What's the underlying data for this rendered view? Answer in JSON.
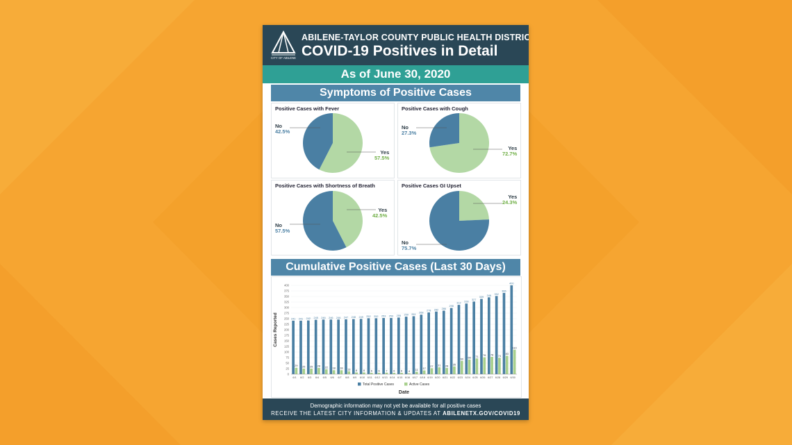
{
  "header": {
    "org": "ABILENE-TAYLOR COUNTY PUBLIC HEALTH DISTRICT",
    "title": "COVID-19 Positives in Detail",
    "logo_text": "CITY OF ABILENE"
  },
  "date_banner": "As of June 30, 2020",
  "symptoms": {
    "section_title": "Symptoms of Positive Cases",
    "panels": [
      {
        "title": "Positive Cases with Fever",
        "no_label": "No",
        "no_value": "42.5%",
        "yes_label": "Yes",
        "yes_value": "57.5%",
        "no": 42.5,
        "yes": 57.5
      },
      {
        "title": "Positive Cases with Cough",
        "no_label": "No",
        "no_value": "27.3%",
        "yes_label": "Yes",
        "yes_value": "72.7%",
        "no": 27.3,
        "yes": 72.7
      },
      {
        "title": "Positive Cases with Shortness of Breath",
        "no_label": "No",
        "no_value": "57.5%",
        "yes_label": "Yes",
        "yes_value": "42.5%",
        "no": 57.5,
        "yes": 42.5
      },
      {
        "title": "Positive Cases GI Upset",
        "no_label": "No",
        "no_value": "75.7%",
        "yes_label": "Yes",
        "yes_value": "24.3%",
        "no": 75.7,
        "yes": 24.3
      }
    ]
  },
  "cumulative": {
    "section_title": "Cumulative Positive Cases (Last 30 Days)"
  },
  "chart_data": {
    "type": "bar",
    "title": "Cumulative Positive Cases (Last 30 Days)",
    "xlabel": "Date",
    "ylabel": "Cases Reported",
    "ylim": [
      0,
      400
    ],
    "yticks": [
      0,
      25,
      50,
      75,
      100,
      125,
      150,
      175,
      200,
      225,
      250,
      275,
      300,
      325,
      350,
      375,
      400
    ],
    "categories": [
      "6/1",
      "6/2",
      "6/3",
      "6/4",
      "6/5",
      "6/6",
      "6/7",
      "6/8",
      "6/9",
      "6/10",
      "6/11",
      "6/12",
      "6/13",
      "6/14",
      "6/15",
      "6/16",
      "6/17",
      "6/18",
      "6/19",
      "6/20",
      "6/21",
      "6/22",
      "6/23",
      "6/24",
      "6/25",
      "6/26",
      "6/27",
      "6/28",
      "6/29",
      "6/30"
    ],
    "series": [
      {
        "name": "Total Positive Cases",
        "color": "#4a7fa3",
        "values": [
          241,
          241,
          242,
          245,
          246,
          246,
          246,
          247,
          248,
          249,
          252,
          252,
          253,
          253,
          255,
          259,
          261,
          268,
          278,
          282,
          286,
          298,
          312,
          318,
          327,
          339,
          346,
          352,
          366,
          400
        ]
      },
      {
        "name": "Active Cases",
        "color": "#a8d08d",
        "values": [
          29,
          25,
          25,
          28,
          22,
          18,
          18,
          13,
          8,
          8,
          6,
          6,
          7,
          6,
          6,
          4,
          11,
          17,
          27,
          31,
          28,
          35,
          60,
          66,
          71,
          76,
          78,
          74,
          83,
          110
        ]
      }
    ],
    "legend": "bottom"
  },
  "footer": {
    "line1": "Demographic information may not yet be available for all positive cases",
    "line2_prefix": "RECEIVE THE LATEST CITY INFORMATION & UPDATES AT",
    "line2_link": "ABILENETX.GOV/COVID19"
  },
  "colors": {
    "background": "#f6a531",
    "header": "#2a4756",
    "teal": "#2fa095",
    "section_blue": "#4f86a8",
    "no_slice": "#4a7fa3",
    "yes_slice": "#b3d8a5"
  }
}
